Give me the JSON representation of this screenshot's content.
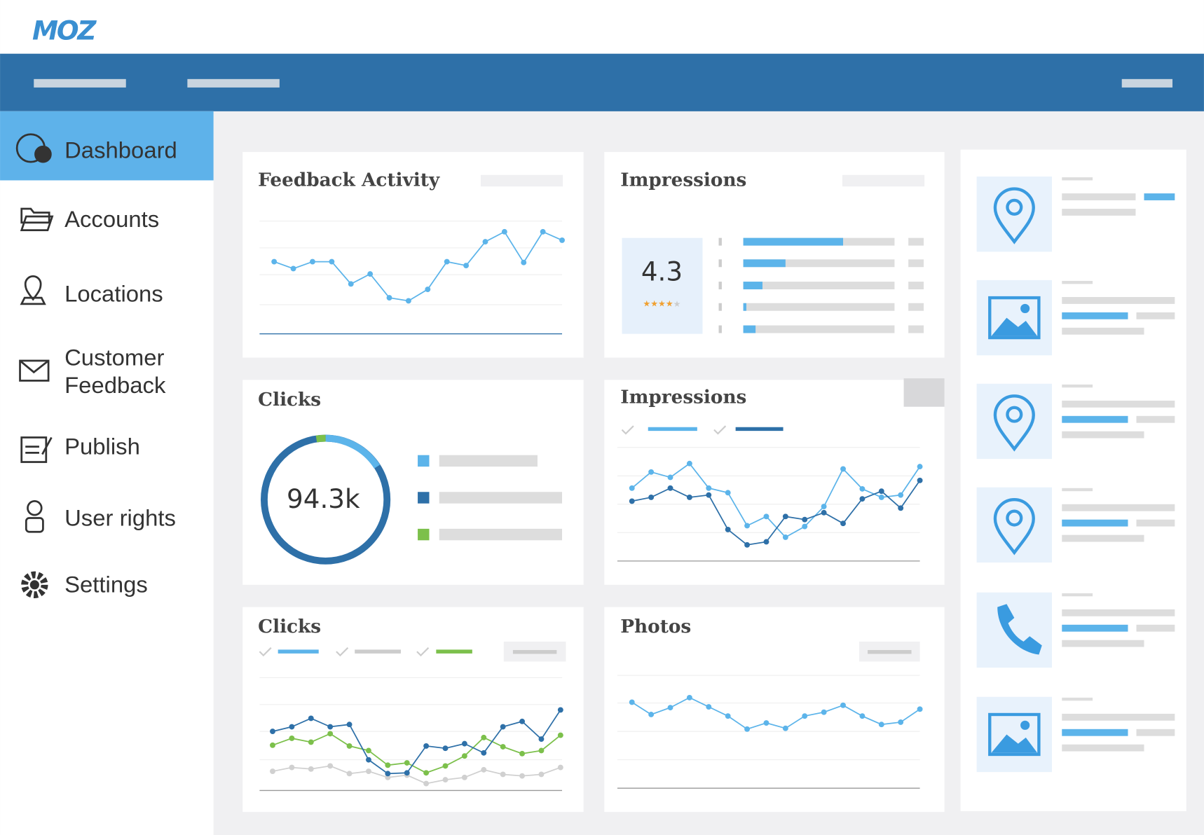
{
  "header": {
    "logo": "MOZ"
  },
  "sidebar": {
    "items": [
      "Dashboard",
      "Accounts",
      "Locations",
      "Customer",
      "Feedback",
      "Publish",
      "User rights",
      "Settings"
    ]
  },
  "widgets": {
    "feedback_activity": {
      "title": "Feedback Activity"
    },
    "impressions_rating": {
      "title": "Impressions",
      "rating": "4.3"
    },
    "clicks_donut": {
      "title": "Clicks",
      "total": "94.3k"
    },
    "impressions_lines": {
      "title": "Impressions"
    },
    "clicks_lines": {
      "title": "Clicks"
    },
    "photos": {
      "title": "Photos"
    }
  }
}
